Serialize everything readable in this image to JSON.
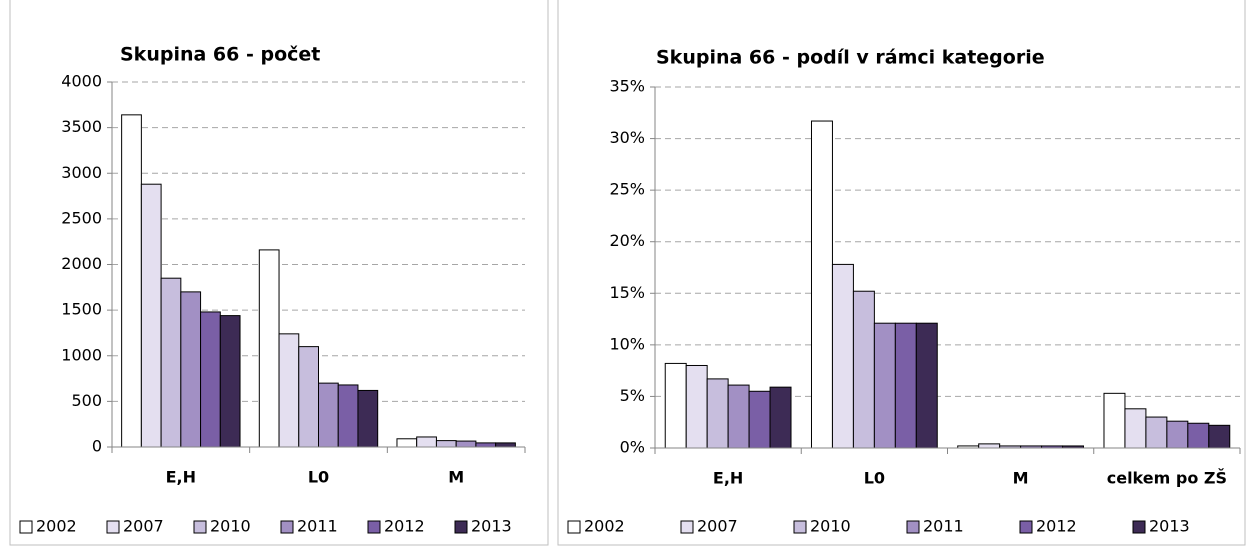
{
  "chart_data": [
    {
      "type": "bar",
      "title": "Skupina 66 - počet",
      "categories": [
        "E,H",
        "L0",
        "M"
      ],
      "series": [
        {
          "name": "2002",
          "color": "#ffffff",
          "values": [
            3640,
            2160,
            90
          ]
        },
        {
          "name": "2007",
          "color": "#e4dff0",
          "values": [
            2880,
            1240,
            110
          ]
        },
        {
          "name": "2010",
          "color": "#c7bedd",
          "values": [
            1850,
            1100,
            70
          ]
        },
        {
          "name": "2011",
          "color": "#a290c4",
          "values": [
            1700,
            700,
            65
          ]
        },
        {
          "name": "2012",
          "color": "#7a5fa6",
          "values": [
            1480,
            680,
            45
          ]
        },
        {
          "name": "2013",
          "color": "#3d2b55",
          "values": [
            1440,
            620,
            45
          ]
        }
      ],
      "ylim": [
        0,
        4000
      ],
      "yticks": [
        0,
        500,
        1000,
        1500,
        2000,
        2500,
        3000,
        3500,
        4000
      ],
      "grid": true,
      "legend": "bottom"
    },
    {
      "type": "bar",
      "title": "Skupina 66 - podíl v rámci kategorie",
      "categories": [
        "E,H",
        "L0",
        "M",
        "celkem po ZŠ"
      ],
      "series": [
        {
          "name": "2002",
          "color": "#ffffff",
          "values": [
            8.2,
            31.7,
            0.2,
            5.3
          ]
        },
        {
          "name": "2007",
          "color": "#e4dff0",
          "values": [
            8.0,
            17.8,
            0.4,
            3.8
          ]
        },
        {
          "name": "2010",
          "color": "#c7bedd",
          "values": [
            6.7,
            15.2,
            0.2,
            3.0
          ]
        },
        {
          "name": "2011",
          "color": "#a290c4",
          "values": [
            6.1,
            12.1,
            0.2,
            2.6
          ]
        },
        {
          "name": "2012",
          "color": "#7a5fa6",
          "values": [
            5.5,
            12.1,
            0.2,
            2.4
          ]
        },
        {
          "name": "2013",
          "color": "#3d2b55",
          "values": [
            5.9,
            12.1,
            0.2,
            2.2
          ]
        }
      ],
      "ylim": [
        0,
        35
      ],
      "yticks": [
        {
          "value": 0,
          "label": "0%"
        },
        {
          "value": 5,
          "label": "5%"
        },
        {
          "value": 10,
          "label": "10%"
        },
        {
          "value": 15,
          "label": "15%"
        },
        {
          "value": 20,
          "label": "20%"
        },
        {
          "value": 25,
          "label": "25%"
        },
        {
          "value": 30,
          "label": "30%"
        },
        {
          "value": 35,
          "label": "35%"
        }
      ],
      "grid": true,
      "legend": "bottom"
    }
  ]
}
